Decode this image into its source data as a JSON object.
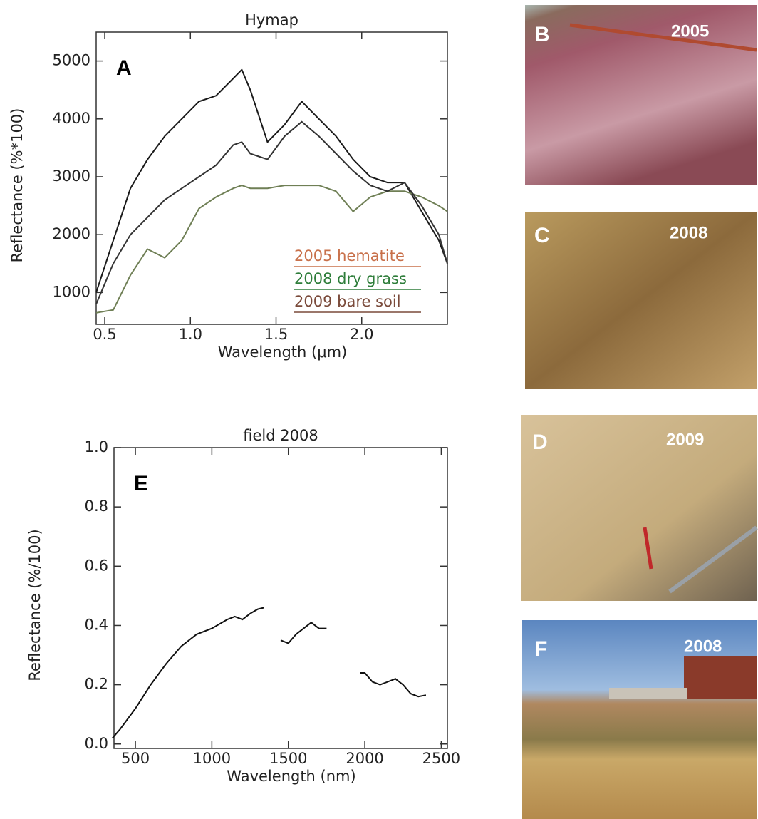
{
  "chart_data": [
    {
      "type": "line",
      "title": "Hymap",
      "panel_label": "A",
      "x_label": "Wavelength (μm)",
      "y_label": "Reflectance (%*100)",
      "x": [
        0.45,
        0.55,
        0.65,
        0.75,
        0.85,
        0.95,
        1.05,
        1.15,
        1.25,
        1.3,
        1.35,
        1.45,
        1.55,
        1.65,
        1.75,
        1.85,
        1.95,
        2.05,
        2.15,
        2.25,
        2.35,
        2.45,
        2.5
      ],
      "series": [
        {
          "name": "2005 hematite",
          "color": "#c8704a",
          "line_color": "#1a1a1a",
          "values": [
            1000,
            1900,
            2800,
            3300,
            3700,
            4000,
            4300,
            4400,
            4700,
            4850,
            4500,
            3600,
            3900,
            4300,
            4000,
            3700,
            3300,
            3000,
            2900,
            2900,
            2400,
            1900,
            1500
          ]
        },
        {
          "name": "2008 dry grass",
          "color": "#2e7d3a",
          "line_color": "#6f7f55",
          "values": [
            650,
            700,
            1300,
            1750,
            1600,
            1900,
            2450,
            2650,
            2800,
            2850,
            2800,
            2800,
            2850,
            2850,
            2850,
            2750,
            2400,
            2650,
            2750,
            2750,
            2650,
            2500,
            2400
          ]
        },
        {
          "name": "2009 bare soil",
          "color": "#7a4a3a",
          "line_color": "#333333",
          "values": [
            800,
            1500,
            2000,
            2300,
            2600,
            2800,
            3000,
            3200,
            3550,
            3600,
            3400,
            3300,
            3700,
            3950,
            3700,
            3400,
            3100,
            2850,
            2750,
            2900,
            2500,
            2000,
            1500
          ]
        }
      ],
      "xlim": [
        0.45,
        2.5
      ],
      "ylim": [
        450,
        5500
      ],
      "xticks": [
        0.5,
        {
          "value": 1,
          "label": "1.0"
        },
        1.5,
        {
          "value": 2,
          "label": "2.0"
        }
      ],
      "yticks": [
        1000,
        2000,
        3000,
        4000,
        5000
      ],
      "legend": "lower right"
    },
    {
      "type": "line",
      "title": "field 2008",
      "panel_label": "E",
      "x_label": "Wavelength (nm)",
      "y_label": "Reflectance (%/100)",
      "x": [
        350,
        400,
        500,
        600,
        700,
        800,
        900,
        1000,
        1100,
        1150,
        1200,
        1250,
        1300,
        1340,
        1400,
        1450,
        1500,
        1550,
        1600,
        1650,
        1700,
        1750,
        1850,
        1970,
        2000,
        2050,
        2100,
        2150,
        2200,
        2250,
        2300,
        2350,
        2400
      ],
      "series": [
        {
          "name": "field 2008",
          "color": "#111111",
          "values": [
            0.02,
            0.05,
            0.12,
            0.2,
            0.27,
            0.33,
            0.37,
            0.39,
            0.42,
            0.43,
            0.42,
            0.44,
            0.455,
            0.46,
            null,
            0.35,
            0.34,
            0.37,
            0.39,
            0.41,
            0.39,
            0.39,
            null,
            0.24,
            0.24,
            0.21,
            0.2,
            0.21,
            0.22,
            0.2,
            0.17,
            0.16,
            0.165
          ]
        }
      ],
      "xlim": [
        360,
        2540
      ],
      "ylim": [
        -0.015,
        1.0
      ],
      "xticks": [
        500,
        1000,
        1500,
        2000,
        2500
      ],
      "yticks": [
        {
          "value": 0,
          "label": "0.0"
        },
        0.2,
        0.4,
        0.6,
        0.8,
        {
          "value": 1,
          "label": "1.0"
        }
      ]
    }
  ],
  "photos": [
    {
      "label": "B",
      "year": "2005"
    },
    {
      "label": "C",
      "year": "2008"
    },
    {
      "label": "D",
      "year": "2009"
    },
    {
      "label": "F",
      "year": "2008"
    }
  ]
}
